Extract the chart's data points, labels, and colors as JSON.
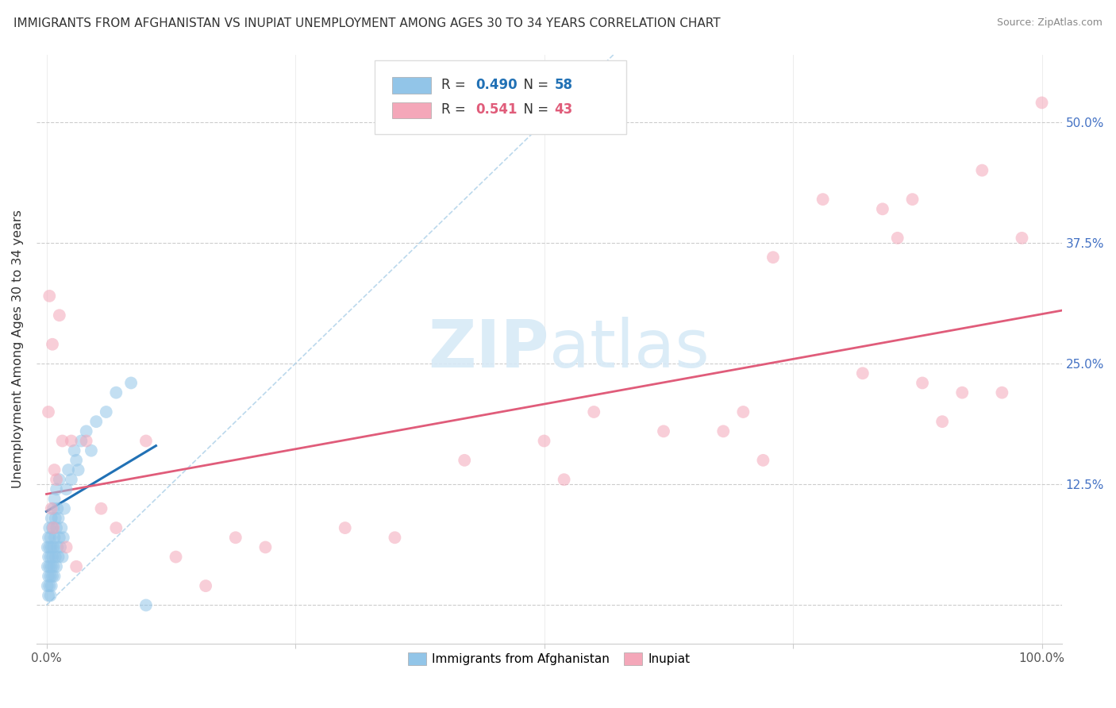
{
  "title": "IMMIGRANTS FROM AFGHANISTAN VS INUPIAT UNEMPLOYMENT AMONG AGES 30 TO 34 YEARS CORRELATION CHART",
  "source": "Source: ZipAtlas.com",
  "ylabel": "Unemployment Among Ages 30 to 34 years",
  "xlim": [
    -0.01,
    1.02
  ],
  "ylim": [
    -0.04,
    0.57
  ],
  "yticks": [
    0.0,
    0.125,
    0.25,
    0.375,
    0.5
  ],
  "yticklabels": [
    "",
    "12.5%",
    "25.0%",
    "37.5%",
    "50.0%"
  ],
  "xtick_positions": [
    0.0,
    0.25,
    0.5,
    0.75,
    1.0
  ],
  "xticklabels_show": [
    "0.0%",
    "",
    "",
    "",
    "100.0%"
  ],
  "legend_blue_r": "0.490",
  "legend_blue_n": "58",
  "legend_pink_r": "0.541",
  "legend_pink_n": "43",
  "blue_scatter_color": "#92c5e8",
  "pink_scatter_color": "#f4a7b9",
  "blue_line_color": "#2171b5",
  "pink_line_color": "#e05c7a",
  "ref_line_color": "#aacfe8",
  "watermark_color": "#d8eaf7",
  "blue_scatter_x": [
    0.001,
    0.001,
    0.001,
    0.002,
    0.002,
    0.002,
    0.002,
    0.003,
    0.003,
    0.003,
    0.003,
    0.004,
    0.004,
    0.004,
    0.004,
    0.005,
    0.005,
    0.005,
    0.005,
    0.006,
    0.006,
    0.006,
    0.007,
    0.007,
    0.007,
    0.008,
    0.008,
    0.008,
    0.009,
    0.009,
    0.01,
    0.01,
    0.01,
    0.011,
    0.011,
    0.012,
    0.012,
    0.013,
    0.013,
    0.014,
    0.015,
    0.016,
    0.017,
    0.018,
    0.02,
    0.022,
    0.025,
    0.028,
    0.03,
    0.032,
    0.035,
    0.04,
    0.045,
    0.05,
    0.06,
    0.07,
    0.085,
    0.1
  ],
  "blue_scatter_y": [
    0.02,
    0.04,
    0.06,
    0.01,
    0.03,
    0.05,
    0.07,
    0.02,
    0.04,
    0.06,
    0.08,
    0.01,
    0.03,
    0.05,
    0.07,
    0.02,
    0.04,
    0.06,
    0.09,
    0.03,
    0.05,
    0.08,
    0.04,
    0.06,
    0.1,
    0.03,
    0.07,
    0.11,
    0.05,
    0.09,
    0.04,
    0.08,
    0.12,
    0.06,
    0.1,
    0.05,
    0.09,
    0.07,
    0.13,
    0.06,
    0.08,
    0.05,
    0.07,
    0.1,
    0.12,
    0.14,
    0.13,
    0.16,
    0.15,
    0.14,
    0.17,
    0.18,
    0.16,
    0.19,
    0.2,
    0.22,
    0.23,
    0.0
  ],
  "pink_scatter_x": [
    0.002,
    0.003,
    0.005,
    0.006,
    0.007,
    0.008,
    0.01,
    0.013,
    0.016,
    0.02,
    0.025,
    0.03,
    0.04,
    0.055,
    0.07,
    0.1,
    0.13,
    0.16,
    0.19,
    0.22,
    0.3,
    0.35,
    0.42,
    0.5,
    0.52,
    0.55,
    0.62,
    0.68,
    0.7,
    0.72,
    0.73,
    0.78,
    0.82,
    0.84,
    0.855,
    0.87,
    0.88,
    0.9,
    0.92,
    0.94,
    0.96,
    0.98,
    1.0
  ],
  "pink_scatter_y": [
    0.2,
    0.32,
    0.1,
    0.27,
    0.08,
    0.14,
    0.13,
    0.3,
    0.17,
    0.06,
    0.17,
    0.04,
    0.17,
    0.1,
    0.08,
    0.17,
    0.05,
    0.02,
    0.07,
    0.06,
    0.08,
    0.07,
    0.15,
    0.17,
    0.13,
    0.2,
    0.18,
    0.18,
    0.2,
    0.15,
    0.36,
    0.42,
    0.24,
    0.41,
    0.38,
    0.42,
    0.23,
    0.19,
    0.22,
    0.45,
    0.22,
    0.38,
    0.52
  ],
  "blue_trend_x": [
    0.0,
    0.11
  ],
  "blue_trend_y": [
    0.097,
    0.165
  ],
  "pink_trend_x": [
    0.0,
    1.02
  ],
  "pink_trend_y": [
    0.115,
    0.305
  ],
  "ref_line_x": [
    0.0,
    0.57
  ],
  "ref_line_y": [
    0.0,
    0.57
  ]
}
